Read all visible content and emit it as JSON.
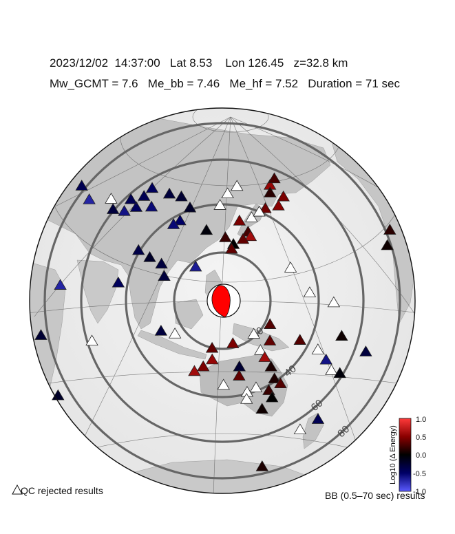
{
  "header": {
    "line1": "2023/12/02  14:37:00   Lat 8.53    Lon 126.45   z=32.8 km",
    "line2": "Mw_GCMT = 7.6   Me_bb = 7.46   Me_hf = 7.52   Duration = 71 sec"
  },
  "distance_rings": {
    "unit": "degrees",
    "labels": [
      "20",
      "40",
      "60",
      "80"
    ]
  },
  "colorbar": {
    "title": "Log10 (Δ Energy)",
    "ticks": [
      "1.0",
      "0.5",
      "0.0",
      "-0.5",
      "-1.0"
    ],
    "min": -1.0,
    "max": 1.0,
    "colors": {
      "high": "#ff3a3a",
      "mid": "#000000",
      "low": "#5a5aff"
    }
  },
  "legend": {
    "qc_rejected": "QC rejected results",
    "bb_results": "BB (0.5–70 sec) results"
  },
  "focal_mechanism": {
    "fill": "#ff0000",
    "background": "#ffffff"
  },
  "stations": [
    {
      "lat": 55,
      "lon": 130,
      "v": null
    },
    {
      "lat": 58,
      "lon": 137,
      "v": null
    },
    {
      "lat": 50,
      "lon": 125,
      "v": null
    },
    {
      "lat": 56,
      "lon": 160,
      "v": 0.55
    },
    {
      "lat": 58,
      "lon": 165,
      "v": 0.25
    },
    {
      "lat": 53,
      "lon": 158,
      "v": 0.15
    },
    {
      "lat": 50,
      "lon": 165,
      "v": 0.45
    },
    {
      "lat": 47,
      "lon": 160,
      "v": 0.5
    },
    {
      "lat": 47,
      "lon": 152,
      "v": 0.4
    },
    {
      "lat": 44,
      "lon": 143,
      "v": null
    },
    {
      "lat": 46,
      "lon": 148,
      "v": null
    },
    {
      "lat": 43,
      "lon": 136,
      "v": 0.45
    },
    {
      "lat": 38,
      "lon": 140,
      "v": 0.25
    },
    {
      "lat": 36,
      "lon": 141,
      "v": 0.6
    },
    {
      "lat": 35,
      "lon": 137,
      "v": 0.35
    },
    {
      "lat": 33,
      "lon": 132,
      "v": 0.0
    },
    {
      "lat": 31,
      "lon": 131,
      "v": 0.35
    },
    {
      "lat": 36,
      "lon": 128,
      "v": 0.2
    },
    {
      "lat": 39,
      "lon": 118,
      "v": -0.05
    },
    {
      "lat": 42,
      "lon": 103,
      "v": -0.5
    },
    {
      "lat": 40,
      "lon": 100,
      "v": -0.55
    },
    {
      "lat": 48,
      "lon": 107,
      "v": -0.2
    },
    {
      "lat": 52,
      "lon": 100,
      "v": -0.25
    },
    {
      "lat": 52,
      "lon": 92,
      "v": -0.3
    },
    {
      "lat": 52,
      "lon": 80,
      "v": -0.45
    },
    {
      "lat": 48,
      "lon": 78,
      "v": -0.4
    },
    {
      "lat": 43,
      "lon": 77,
      "v": -0.45
    },
    {
      "lat": 45,
      "lon": 85,
      "v": -0.55
    },
    {
      "lat": 45,
      "lon": 72,
      "v": -0.4
    },
    {
      "lat": 40,
      "lon": 72,
      "v": -0.6
    },
    {
      "lat": 39,
      "lon": 66,
      "v": -0.3
    },
    {
      "lat": 42,
      "lon": 62,
      "v": null
    },
    {
      "lat": 40,
      "lon": 44,
      "v": -0.4
    },
    {
      "lat": 38,
      "lon": 52,
      "v": -0.7
    },
    {
      "lat": 25,
      "lon": 92,
      "v": -0.2
    },
    {
      "lat": 27,
      "lon": 86,
      "v": -0.35
    },
    {
      "lat": 23,
      "lon": 98,
      "v": -0.3
    },
    {
      "lat": 23,
      "lon": 114,
      "v": -0.65
    },
    {
      "lat": 18,
      "lon": 100,
      "v": -0.3
    },
    {
      "lat": 13,
      "lon": 80,
      "v": -0.45
    },
    {
      "lat": 8,
      "lon": 55,
      "v": -0.7
    },
    {
      "lat": -9,
      "lon": 48,
      "v": -0.25
    },
    {
      "lat": -10,
      "lon": 70,
      "v": null
    },
    {
      "lat": -6,
      "lon": 106,
      "v": null
    },
    {
      "lat": -5,
      "lon": 100,
      "v": -0.3
    },
    {
      "lat": -27,
      "lon": 28,
      "v": -0.25
    },
    {
      "lat": -28,
      "lon": 50,
      "v": -0.2
    },
    {
      "lat": -45,
      "lon": 35,
      "v": 0.25
    },
    {
      "lat": 10,
      "lon": 165,
      "v": null
    },
    {
      "lat": 21,
      "lon": 158,
      "v": null
    },
    {
      "lat": 20,
      "lon": -156,
      "v": 0.05
    },
    {
      "lat": 24,
      "lon": -152,
      "v": 0.15
    },
    {
      "lat": 5,
      "lon": 175,
      "v": null
    },
    {
      "lat": -2,
      "lon": 147,
      "v": 0.3
    },
    {
      "lat": -6,
      "lon": 140,
      "v": null
    },
    {
      "lat": -9,
      "lon": 147,
      "v": 0.35
    },
    {
      "lat": -9,
      "lon": 160,
      "v": 0.3
    },
    {
      "lat": -13,
      "lon": 168,
      "v": null
    },
    {
      "lat": -8,
      "lon": 178,
      "v": 0.05
    },
    {
      "lat": -10,
      "lon": 131,
      "v": 0.45
    },
    {
      "lat": -13,
      "lon": 143,
      "v": null
    },
    {
      "lat": -16,
      "lon": 145,
      "v": 0.6
    },
    {
      "lat": -12,
      "lon": 122,
      "v": 0.35
    },
    {
      "lat": -17,
      "lon": 122,
      "v": 0.55
    },
    {
      "lat": -20,
      "lon": 118,
      "v": 0.45
    },
    {
      "lat": -22,
      "lon": 114,
      "v": 0.6
    },
    {
      "lat": -20,
      "lon": 134,
      "v": -0.25
    },
    {
      "lat": -24,
      "lon": 134,
      "v": 0.35
    },
    {
      "lat": -20,
      "lon": 148,
      "v": 0.1
    },
    {
      "lat": -25,
      "lon": 150,
      "v": 0.1
    },
    {
      "lat": -27,
      "lon": 153,
      "v": 0.3
    },
    {
      "lat": -29,
      "lon": 142,
      "v": null
    },
    {
      "lat": -30,
      "lon": 148,
      "v": 0.2
    },
    {
      "lat": -33,
      "lon": 150,
      "v": 0.0
    },
    {
      "lat": -31,
      "lon": 138,
      "v": null
    },
    {
      "lat": -28,
      "lon": 127,
      "v": null
    },
    {
      "lat": -34,
      "lon": 138,
      "v": null
    },
    {
      "lat": -38,
      "lon": 146,
      "v": 0.05
    },
    {
      "lat": -17,
      "lon": 172,
      "v": -0.6
    },
    {
      "lat": -21,
      "lon": 175,
      "v": null
    },
    {
      "lat": -22,
      "lon": 179,
      "v": -0.05
    },
    {
      "lat": -40,
      "lon": 175,
      "v": -0.4
    },
    {
      "lat": -45,
      "lon": 168,
      "v": null
    },
    {
      "lat": -14,
      "lon": -171,
      "v": -0.3
    },
    {
      "lat": -62,
      "lon": 155,
      "v": 0.1
    }
  ]
}
